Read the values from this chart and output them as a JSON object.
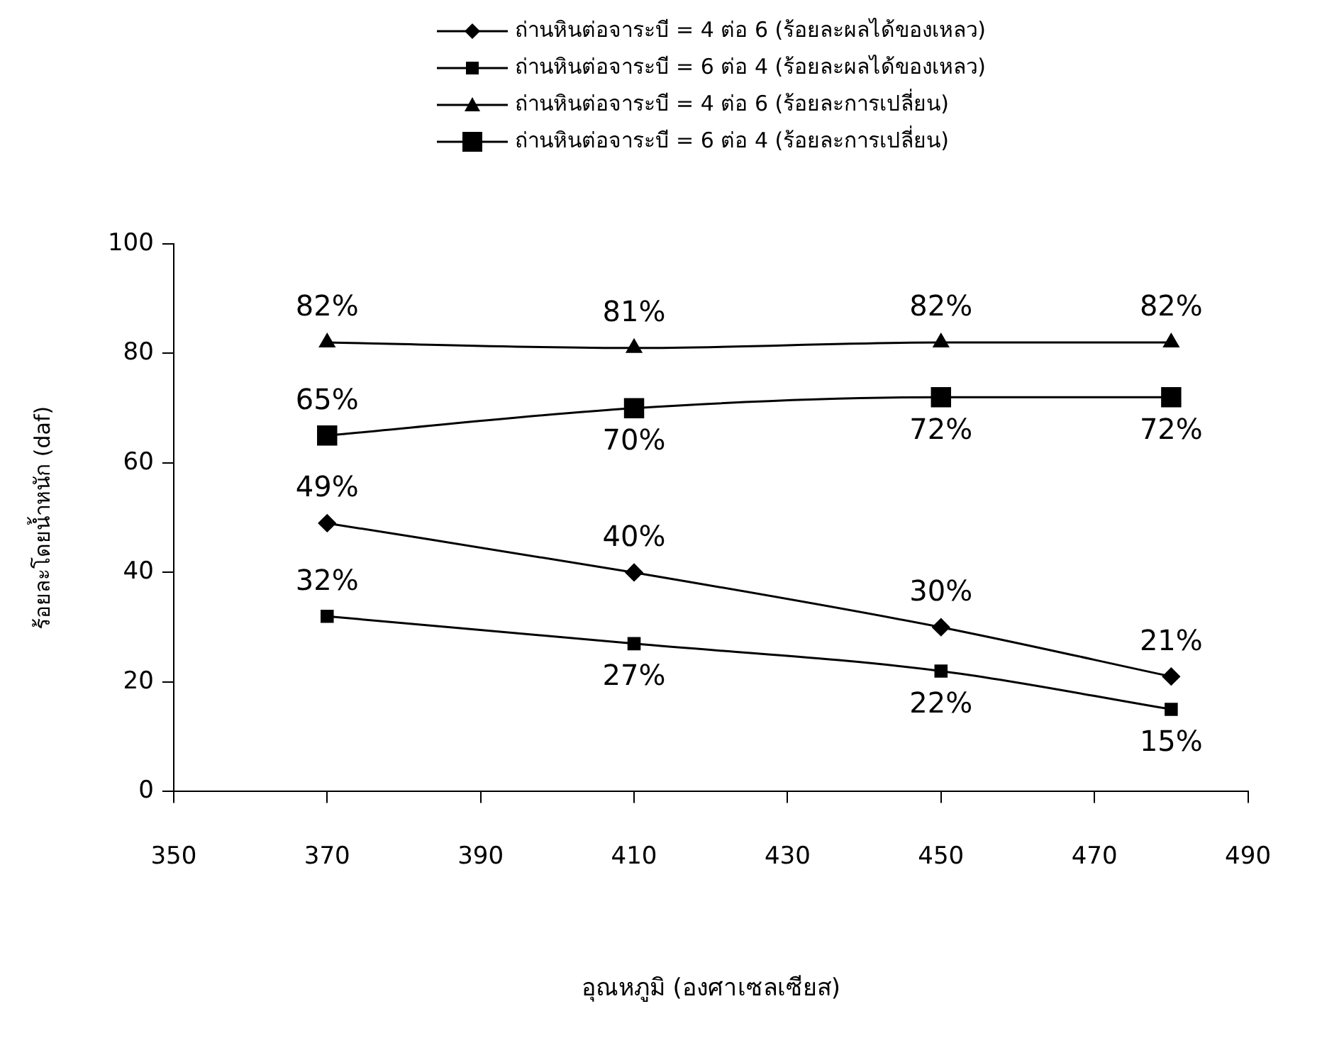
{
  "chart_data": {
    "type": "line",
    "xlabel": "อุณหภูมิ (องศาเซลเซียส)",
    "ylabel": "ร้อยละโดยน้ำหนัก (daf)",
    "x": [
      370,
      410,
      450,
      480
    ],
    "xlim": [
      350,
      490
    ],
    "xticks": [
      350,
      370,
      390,
      410,
      430,
      450,
      470,
      490
    ],
    "ylim": [
      0,
      100
    ],
    "yticks": [
      0,
      20,
      40,
      60,
      80,
      100
    ],
    "grid": false,
    "legend": "top",
    "series": [
      {
        "name": "ถ่านหินต่อจาระบี = 4 ต่อ 6 (ร้อยละผลได้ของเหลว)",
        "color": "#000000",
        "marker": "diamond",
        "values": [
          49,
          40,
          30,
          21
        ],
        "value_labels": [
          "49%",
          "40%",
          "30%",
          "21%"
        ]
      },
      {
        "name": "ถ่านหินต่อจาระบี = 6 ต่อ 4 (ร้อยละผลได้ของเหลว)",
        "color": "#000000",
        "marker": "square",
        "values": [
          32,
          27,
          22,
          15
        ],
        "value_labels": [
          "32%",
          "27%",
          "22%",
          "15%"
        ]
      },
      {
        "name": "ถ่านหินต่อจาระบี = 4 ต่อ 6 (ร้อยละการเปลี่ยน)",
        "color": "#000000",
        "marker": "triangle",
        "values": [
          82,
          81,
          82,
          82
        ],
        "value_labels": [
          "82%",
          "81%",
          "82%",
          "82%"
        ]
      },
      {
        "name": "ถ่านหินต่อจาระบี = 6 ต่อ 4 (ร้อยละการเปลี่ยน)",
        "color": "#000000",
        "marker": "square",
        "values": [
          65,
          70,
          72,
          72
        ],
        "value_labels": [
          "65%",
          "70%",
          "72%",
          "72%"
        ]
      }
    ]
  }
}
